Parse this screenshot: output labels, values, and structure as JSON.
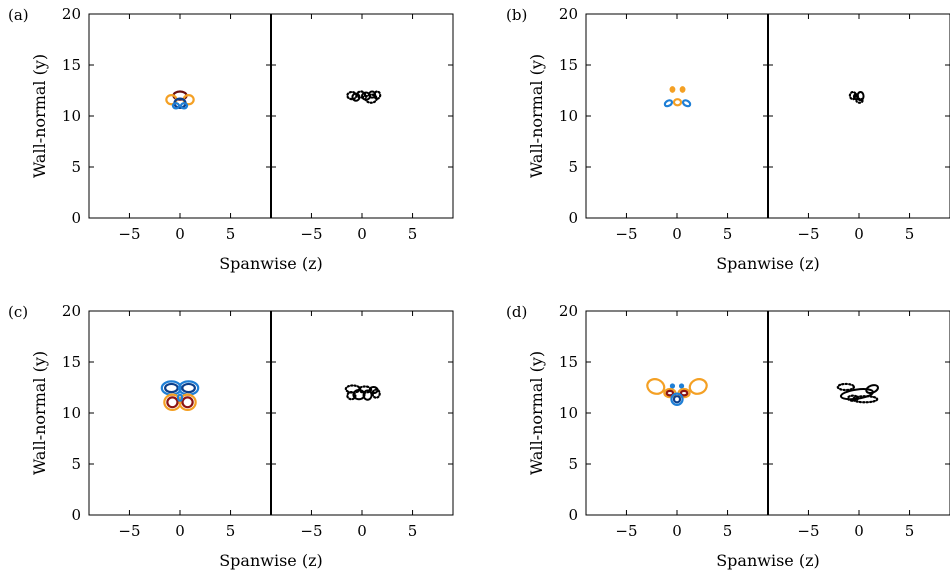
{
  "chart_data": [
    {
      "type": "contour",
      "panel_label": "(a)",
      "xlabel": "Spanwise (z)",
      "ylabel": "Wall-normal (y)",
      "xlim": [
        -9,
        9
      ],
      "ylim": [
        0,
        20
      ],
      "xticks": [
        -5,
        0,
        5
      ],
      "yticks": [
        0,
        5,
        10,
        15,
        20
      ],
      "xtick_labels": [
        "−5",
        "0",
        "5"
      ],
      "ytick_labels": [
        "0",
        "5",
        "10",
        "15",
        "20"
      ],
      "left_contours": [
        {
          "color": "#e0392b",
          "outline": "#6b0f0f",
          "cx": 0.0,
          "cy": 12.0,
          "rx": 0.65,
          "ry": 0.4
        },
        {
          "color": "#f4a024",
          "outline": "#f4a024",
          "cx": -0.85,
          "cy": 11.6,
          "rx": 0.5,
          "ry": 0.45
        },
        {
          "color": "#f4a024",
          "outline": "#f4a024",
          "cx": 0.85,
          "cy": 11.6,
          "rx": 0.5,
          "ry": 0.45
        },
        {
          "color": "#1f7fd6",
          "outline": "#0d3f8a",
          "cx": 0.0,
          "cy": 11.25,
          "rx": 0.55,
          "ry": 0.45
        },
        {
          "color": "#1f7fd6",
          "outline": "#1f7fd6",
          "cx": -0.4,
          "cy": 11.0,
          "rx": 0.3,
          "ry": 0.25
        },
        {
          "color": "#1f7fd6",
          "outline": "#1f7fd6",
          "cx": 0.4,
          "cy": 11.0,
          "rx": 0.3,
          "ry": 0.25
        }
      ],
      "right_contours": [
        {
          "style": "solid",
          "cx": -0.6,
          "cy": 11.85,
          "rx": 0.35,
          "ry": 0.35
        },
        {
          "style": "solid",
          "cx": 0.4,
          "cy": 11.95,
          "rx": 0.4,
          "ry": 0.35
        },
        {
          "style": "solid",
          "cx": 1.0,
          "cy": 12.1,
          "rx": 0.3,
          "ry": 0.3
        },
        {
          "style": "dotted",
          "cx": -1.0,
          "cy": 12.0,
          "rx": 0.45,
          "ry": 0.35
        },
        {
          "style": "dotted",
          "cx": 0.9,
          "cy": 11.7,
          "rx": 0.55,
          "ry": 0.4
        },
        {
          "style": "dotted",
          "cx": -0.1,
          "cy": 12.1,
          "rx": 0.4,
          "ry": 0.3
        },
        {
          "style": "dotted",
          "cx": 1.5,
          "cy": 12.05,
          "rx": 0.3,
          "ry": 0.35
        }
      ]
    },
    {
      "type": "contour",
      "panel_label": "(b)",
      "xlabel": "Spanwise (z)",
      "ylabel": "Wall-normal (y)",
      "xlim": [
        -9,
        9
      ],
      "ylim": [
        0,
        20
      ],
      "xticks": [
        -5,
        0,
        5
      ],
      "yticks": [
        0,
        5,
        10,
        15,
        20
      ],
      "xtick_labels": [
        "−5",
        "0",
        "5"
      ],
      "ytick_labels": [
        "0",
        "5",
        "10",
        "15",
        "20"
      ],
      "left_contours": [
        {
          "color": "#f4a024",
          "outline": "#f4a024",
          "cx": -0.45,
          "cy": 12.6,
          "rx": 0.18,
          "ry": 0.22,
          "fill": true
        },
        {
          "color": "#f4a024",
          "outline": "#f4a024",
          "cx": 0.55,
          "cy": 12.6,
          "rx": 0.18,
          "ry": 0.22,
          "fill": true
        },
        {
          "color": "#f4a024",
          "outline": "#f4a024",
          "cx": 0.05,
          "cy": 11.35,
          "rx": 0.35,
          "ry": 0.3
        },
        {
          "color": "#1f7fd6",
          "outline": "#1f7fd6",
          "cx": -0.85,
          "cy": 11.25,
          "rx": 0.38,
          "ry": 0.25,
          "rotate": -30
        },
        {
          "color": "#1f7fd6",
          "outline": "#1f7fd6",
          "cx": 0.95,
          "cy": 11.25,
          "rx": 0.38,
          "ry": 0.25,
          "rotate": 30
        }
      ],
      "right_contours": [
        {
          "style": "solid",
          "cx": 0.15,
          "cy": 11.95,
          "rx": 0.3,
          "ry": 0.4
        },
        {
          "style": "solid",
          "cx": -0.3,
          "cy": 11.9,
          "rx": 0.2,
          "ry": 0.25
        },
        {
          "style": "dotted",
          "cx": -0.6,
          "cy": 12.0,
          "rx": 0.3,
          "ry": 0.35
        },
        {
          "style": "dotted",
          "cx": 0.05,
          "cy": 11.5,
          "rx": 0.3,
          "ry": 0.2
        }
      ]
    },
    {
      "type": "contour",
      "panel_label": "(c)",
      "xlabel": "Spanwise (z)",
      "ylabel": "Wall-normal (y)",
      "xlim": [
        -9,
        9
      ],
      "ylim": [
        0,
        20
      ],
      "xticks": [
        -5,
        0,
        5
      ],
      "yticks": [
        0,
        5,
        10,
        15,
        20
      ],
      "xtick_labels": [
        "−5",
        "0",
        "5"
      ],
      "ytick_labels": [
        "0",
        "5",
        "10",
        "15",
        "20"
      ],
      "left_contours": [
        {
          "color": "#1f7fd6",
          "outline": "#1f7fd6",
          "cx": -0.85,
          "cy": 12.45,
          "rx": 0.95,
          "ry": 0.65
        },
        {
          "color": "#0d3f8a",
          "outline": "#0d3f8a",
          "cx": -0.85,
          "cy": 12.45,
          "rx": 0.62,
          "ry": 0.4
        },
        {
          "color": "#1f7fd6",
          "outline": "#1f7fd6",
          "cx": 0.85,
          "cy": 12.45,
          "rx": 0.95,
          "ry": 0.65
        },
        {
          "color": "#0d3f8a",
          "outline": "#0d3f8a",
          "cx": 0.85,
          "cy": 12.45,
          "rx": 0.62,
          "ry": 0.4
        },
        {
          "color": "#f4a024",
          "outline": "#f4a024",
          "cx": -0.75,
          "cy": 11.05,
          "rx": 0.8,
          "ry": 0.75
        },
        {
          "color": "#8b1414",
          "outline": "#8b1414",
          "cx": -0.75,
          "cy": 11.05,
          "rx": 0.5,
          "ry": 0.48
        },
        {
          "color": "#f4a024",
          "outline": "#f4a024",
          "cx": 0.75,
          "cy": 11.05,
          "rx": 0.8,
          "ry": 0.75
        },
        {
          "color": "#8b1414",
          "outline": "#8b1414",
          "cx": 0.75,
          "cy": 11.05,
          "rx": 0.5,
          "ry": 0.48
        },
        {
          "color": "#1f7fd6",
          "outline": "#1f7fd6",
          "cx": 0.0,
          "cy": 11.5,
          "rx": 0.2,
          "ry": 0.3
        }
      ],
      "right_contours": [
        {
          "style": "solid",
          "cx": -0.3,
          "cy": 11.8,
          "rx": 0.55,
          "ry": 0.45
        },
        {
          "style": "solid",
          "cx": 0.55,
          "cy": 11.75,
          "rx": 0.4,
          "ry": 0.45
        },
        {
          "style": "solid",
          "cx": 1.15,
          "cy": 12.25,
          "rx": 0.4,
          "ry": 0.3
        },
        {
          "style": "dotted",
          "cx": -0.9,
          "cy": 12.35,
          "rx": 0.7,
          "ry": 0.35
        },
        {
          "style": "dotted",
          "cx": 0.3,
          "cy": 12.3,
          "rx": 0.6,
          "ry": 0.3
        },
        {
          "style": "dotted",
          "cx": -1.05,
          "cy": 11.7,
          "rx": 0.4,
          "ry": 0.35
        },
        {
          "style": "dotted",
          "cx": 1.4,
          "cy": 11.9,
          "rx": 0.35,
          "ry": 0.4
        }
      ]
    },
    {
      "type": "contour",
      "panel_label": "(d)",
      "xlabel": "Spanwise (z)",
      "ylabel": "Wall-normal (y)",
      "xlim": [
        -9,
        9
      ],
      "ylim": [
        0,
        20
      ],
      "xticks": [
        -5,
        0,
        5
      ],
      "yticks": [
        0,
        5,
        10,
        15,
        20
      ],
      "xtick_labels": [
        "−5",
        "0",
        "5"
      ],
      "ytick_labels": [
        "0",
        "5",
        "10",
        "15",
        "20"
      ],
      "left_contours": [
        {
          "color": "#f4a024",
          "outline": "#f4a024",
          "cx": -2.1,
          "cy": 12.6,
          "rx": 0.85,
          "ry": 0.7,
          "rotate": 20
        },
        {
          "color": "#f4a024",
          "outline": "#f4a024",
          "cx": 2.1,
          "cy": 12.6,
          "rx": 0.85,
          "ry": 0.7,
          "rotate": -20
        },
        {
          "color": "#1f7fd6",
          "outline": "#1f7fd6",
          "cx": -0.45,
          "cy": 12.65,
          "rx": 0.15,
          "ry": 0.15,
          "fill": true
        },
        {
          "color": "#1f7fd6",
          "outline": "#1f7fd6",
          "cx": 0.45,
          "cy": 12.65,
          "rx": 0.15,
          "ry": 0.15,
          "fill": true
        },
        {
          "color": "#f4a024",
          "outline": "#f4a024",
          "cx": -0.7,
          "cy": 11.95,
          "rx": 0.55,
          "ry": 0.4
        },
        {
          "color": "#8b1414",
          "outline": "#8b1414",
          "cx": -0.7,
          "cy": 11.95,
          "rx": 0.32,
          "ry": 0.22
        },
        {
          "color": "#f4a024",
          "outline": "#f4a024",
          "cx": 0.7,
          "cy": 11.95,
          "rx": 0.55,
          "ry": 0.4
        },
        {
          "color": "#8b1414",
          "outline": "#8b1414",
          "cx": 0.7,
          "cy": 11.95,
          "rx": 0.32,
          "ry": 0.22
        },
        {
          "color": "#1f7fd6",
          "outline": "#1f7fd6",
          "cx": 0.0,
          "cy": 11.35,
          "rx": 0.55,
          "ry": 0.55
        },
        {
          "color": "#0d3f8a",
          "outline": "#0d3f8a",
          "cx": 0.0,
          "cy": 11.35,
          "rx": 0.3,
          "ry": 0.3
        }
      ],
      "right_contours": [
        {
          "style": "solid",
          "cx": -0.2,
          "cy": 11.85,
          "rx": 1.6,
          "ry": 0.45,
          "rotate": -8
        },
        {
          "style": "solid",
          "cx": 1.3,
          "cy": 12.35,
          "rx": 0.6,
          "ry": 0.35,
          "rotate": -20
        },
        {
          "style": "dotted",
          "cx": -1.3,
          "cy": 12.55,
          "rx": 0.8,
          "ry": 0.3
        },
        {
          "style": "dotted",
          "cx": 0.6,
          "cy": 11.35,
          "rx": 1.2,
          "ry": 0.3
        },
        {
          "style": "dotted",
          "cx": -0.6,
          "cy": 11.45,
          "rx": 0.5,
          "ry": 0.25
        }
      ]
    }
  ]
}
